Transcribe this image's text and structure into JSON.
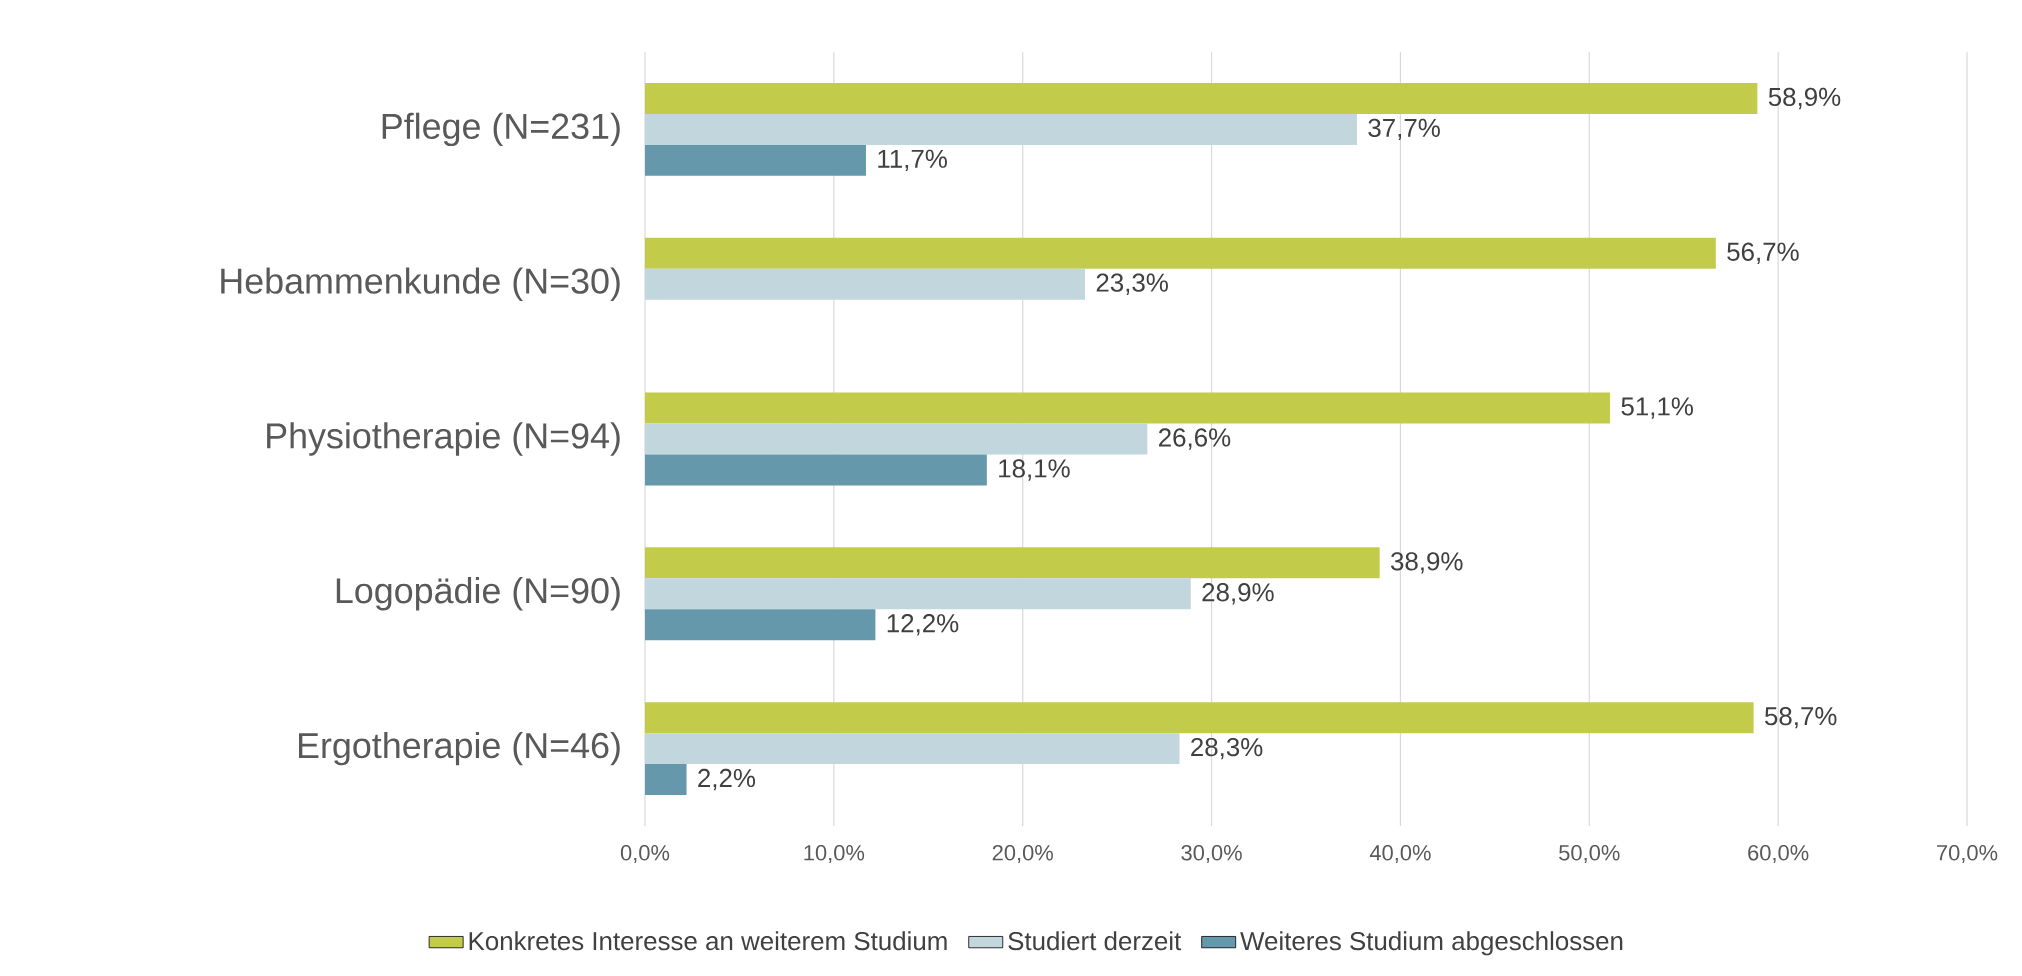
{
  "chart_data": {
    "type": "bar",
    "orientation": "horizontal",
    "categories": [
      "Pflege (N=231)",
      "Hebammenkunde (N=30)",
      "Physiotherapie (N=94)",
      "Logopädie (N=90)",
      "Ergotherapie (N=46)"
    ],
    "series": [
      {
        "name": "Konkretes Interesse an weiterem Studium",
        "color": "#c3cb4a",
        "values": [
          58.9,
          56.7,
          51.1,
          38.9,
          58.7
        ],
        "value_labels": [
          "58,9%",
          "56,7%",
          "51,1%",
          "38,9%",
          "58,7%"
        ]
      },
      {
        "name": "Studiert derzeit",
        "color": "#c2d6de",
        "values": [
          37.7,
          23.3,
          26.6,
          28.9,
          28.3
        ],
        "value_labels": [
          "37,7%",
          "23,3%",
          "26,6%",
          "28,9%",
          "28,3%"
        ]
      },
      {
        "name": "Weiteres Studium abgeschlossen",
        "color": "#6598ab",
        "values": [
          11.7,
          null,
          18.1,
          12.2,
          2.2
        ],
        "value_labels": [
          "11,7%",
          null,
          "18,1%",
          "12,2%",
          "2,2%"
        ]
      }
    ],
    "xlim": [
      0,
      70
    ],
    "xticks": [
      {
        "value": 0,
        "label": "0,0%"
      },
      {
        "value": 10,
        "label": "10,0%"
      },
      {
        "value": 20,
        "label": "20,0%"
      },
      {
        "value": 30,
        "label": "30,0%"
      },
      {
        "value": 40,
        "label": "40,0%"
      },
      {
        "value": 50,
        "label": "50,0%"
      },
      {
        "value": 60,
        "label": "60,0%"
      },
      {
        "value": 70,
        "label": "70,0%"
      }
    ],
    "grid": "x",
    "legend": "bottom"
  }
}
